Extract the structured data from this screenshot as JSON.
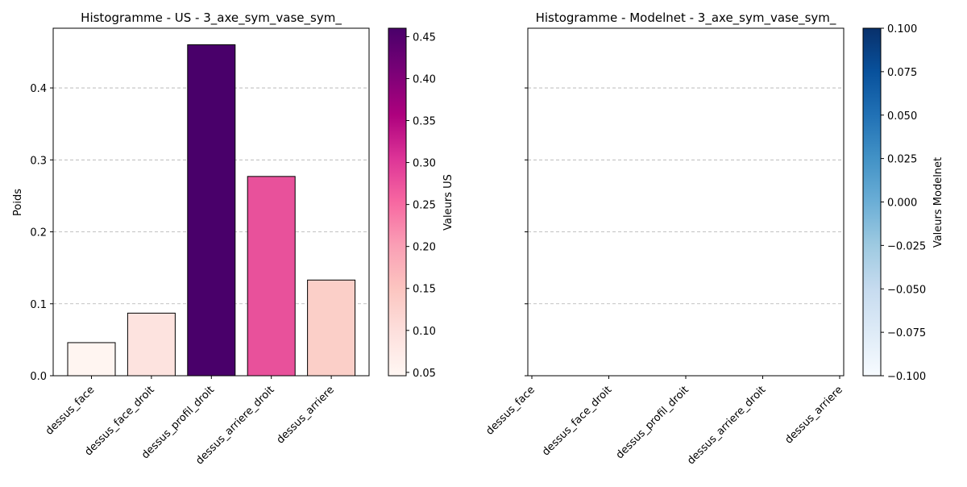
{
  "chart_data": [
    {
      "type": "bar",
      "title": "Histogramme - US - 3_axe_sym_vase_sym_",
      "ylabel": "Poids",
      "categories": [
        "dessus_face",
        "dessus_face_droit",
        "dessus_profil_droit",
        "dessus_arriere_droit",
        "dessus_arriere"
      ],
      "values": [
        0.046,
        0.087,
        0.46,
        0.277,
        0.133
      ],
      "bar_colors": [
        "#fff5f1",
        "#fde3df",
        "#49006a",
        "#e8519b",
        "#fbcfc8"
      ],
      "ylim": [
        0,
        0.483
      ],
      "yticks": [
        "0.0",
        "0.1",
        "0.2",
        "0.3",
        "0.4"
      ],
      "grid": true,
      "colorbar": {
        "label": "Valeurs US",
        "colormap": "RdPu",
        "colors": [
          "#fff7f3",
          "#fde0dd",
          "#fcc5c0",
          "#fa9fb5",
          "#f768a1",
          "#dd3497",
          "#ae017e",
          "#7a0177",
          "#49006a"
        ],
        "range": [
          0.046,
          0.46
        ],
        "ticks": [
          "0.05",
          "0.10",
          "0.15",
          "0.20",
          "0.25",
          "0.30",
          "0.35",
          "0.40",
          "0.45"
        ]
      }
    },
    {
      "type": "bar",
      "title": "Histogramme - Modelnet - 3_axe_sym_vase_sym_",
      "categories": [
        "dessus_face",
        "dessus_face_droit",
        "dessus_profil_droit",
        "dessus_arriere_droit",
        "dessus_arriere"
      ],
      "values": [
        0,
        0,
        0,
        0,
        0
      ],
      "ylim": [
        0,
        0.483
      ],
      "grid": true,
      "colorbar": {
        "label": "Valeurs Modelnet",
        "colormap": "Blues",
        "colors": [
          "#f7fbff",
          "#deebf7",
          "#c6dbef",
          "#9ecae1",
          "#6baed6",
          "#4292c6",
          "#2171b5",
          "#08519c",
          "#08306b"
        ],
        "range": [
          -0.1,
          0.1
        ],
        "ticks": [
          "−0.100",
          "−0.075",
          "−0.050",
          "−0.025",
          "0.000",
          "0.025",
          "0.050",
          "0.075",
          "0.100"
        ]
      }
    }
  ]
}
